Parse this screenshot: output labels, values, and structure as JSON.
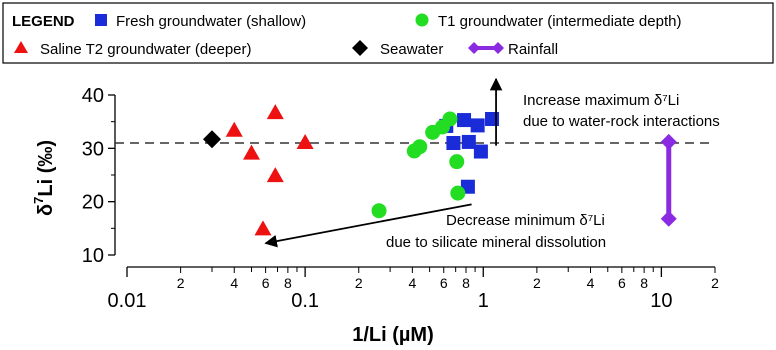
{
  "chart_data": {
    "type": "scatter",
    "title": "",
    "xlabel": "1/Li (µM)",
    "ylabel": "δ⁷Li (‰)",
    "ylabel_symbol": "δ",
    "ylabel_super": "7",
    "ylabel_rest": "Li (‰)",
    "xscale": "log",
    "xlim": [
      0.01,
      20
    ],
    "ylim": [
      10,
      40
    ],
    "grid": false,
    "legend": {
      "placement": "top",
      "title": "LEGEND",
      "entries": [
        {
          "label": "Fresh groundwater (shallow)",
          "marker": "square",
          "color": "#1a2bd8"
        },
        {
          "label": "T1 groundwater (intermediate depth)",
          "marker": "circle",
          "color": "#22dd22"
        },
        {
          "label": "Saline T2 groundwater (deeper)",
          "marker": "triangle",
          "color": "#ee1111"
        },
        {
          "label": "Seawater",
          "marker": "diamond",
          "color": "#000000"
        },
        {
          "label": "Rainfall",
          "marker": "diamond-bar",
          "color": "#8a2be2"
        }
      ]
    },
    "xticks_major": [
      {
        "value": 0.01,
        "label": "0.01"
      },
      {
        "value": 0.1,
        "label": "0.1"
      },
      {
        "value": 1,
        "label": "1"
      },
      {
        "value": 10,
        "label": "10"
      }
    ],
    "xticks_minor": [
      {
        "value": 0.02,
        "label": "2"
      },
      {
        "value": 0.04,
        "label": "4"
      },
      {
        "value": 0.06,
        "label": "6"
      },
      {
        "value": 0.08,
        "label": "8"
      },
      {
        "value": 0.2,
        "label": "2"
      },
      {
        "value": 0.4,
        "label": "4"
      },
      {
        "value": 0.6,
        "label": "6"
      },
      {
        "value": 0.8,
        "label": "8"
      },
      {
        "value": 2,
        "label": "2"
      },
      {
        "value": 4,
        "label": "4"
      },
      {
        "value": 6,
        "label": "6"
      },
      {
        "value": 8,
        "label": "8"
      },
      {
        "value": 20,
        "label": "2"
      }
    ],
    "yticks": [
      10,
      20,
      30,
      40
    ],
    "reference_line": {
      "y": 31,
      "style": "dashed"
    },
    "series": [
      {
        "name": "Fresh groundwater (shallow)",
        "marker": "square",
        "color": "#1a2bd8",
        "points": [
          [
            0.62,
            34.2
          ],
          [
            0.68,
            31.0
          ],
          [
            0.78,
            35.3
          ],
          [
            0.83,
            31.2
          ],
          [
            0.93,
            34.3
          ],
          [
            0.97,
            29.4
          ],
          [
            1.12,
            35.5
          ],
          [
            0.82,
            22.8
          ]
        ]
      },
      {
        "name": "T1 groundwater (intermediate depth)",
        "marker": "circle",
        "color": "#22dd22",
        "points": [
          [
            0.26,
            18.3
          ],
          [
            0.41,
            29.5
          ],
          [
            0.44,
            30.3
          ],
          [
            0.52,
            33.0
          ],
          [
            0.59,
            34.0
          ],
          [
            0.65,
            35.5
          ],
          [
            0.71,
            27.5
          ],
          [
            0.72,
            21.6
          ]
        ]
      },
      {
        "name": "Saline T2 groundwater (deeper)",
        "marker": "triangle",
        "color": "#ee1111",
        "points": [
          [
            0.04,
            33.3
          ],
          [
            0.05,
            29.0
          ],
          [
            0.058,
            14.8
          ],
          [
            0.068,
            36.6
          ],
          [
            0.068,
            24.8
          ],
          [
            0.1,
            31.0
          ]
        ]
      },
      {
        "name": "Seawater",
        "marker": "diamond",
        "color": "#000000",
        "points": [
          [
            0.03,
            31.7
          ]
        ]
      },
      {
        "name": "Rainfall",
        "marker": "diamond-bar",
        "color": "#8a2be2",
        "points": [
          [
            11,
            30.5
          ]
        ],
        "range": [
          16.8,
          31.2
        ]
      }
    ],
    "annotations": [
      {
        "id": "increase",
        "lines": [
          "Increase maximum δ⁷Li",
          "due to water-rock interactions"
        ],
        "arrow_x": 1.18,
        "arrow_from_y": 30.5,
        "arrow_to_y": 43
      },
      {
        "id": "decrease",
        "lines": [
          "Decrease minimum δ⁷Li",
          "due to silicate mineral dissolution"
        ],
        "arrow_from": [
          0.86,
          19.5
        ],
        "arrow_to": [
          0.06,
          12.2
        ]
      }
    ]
  }
}
